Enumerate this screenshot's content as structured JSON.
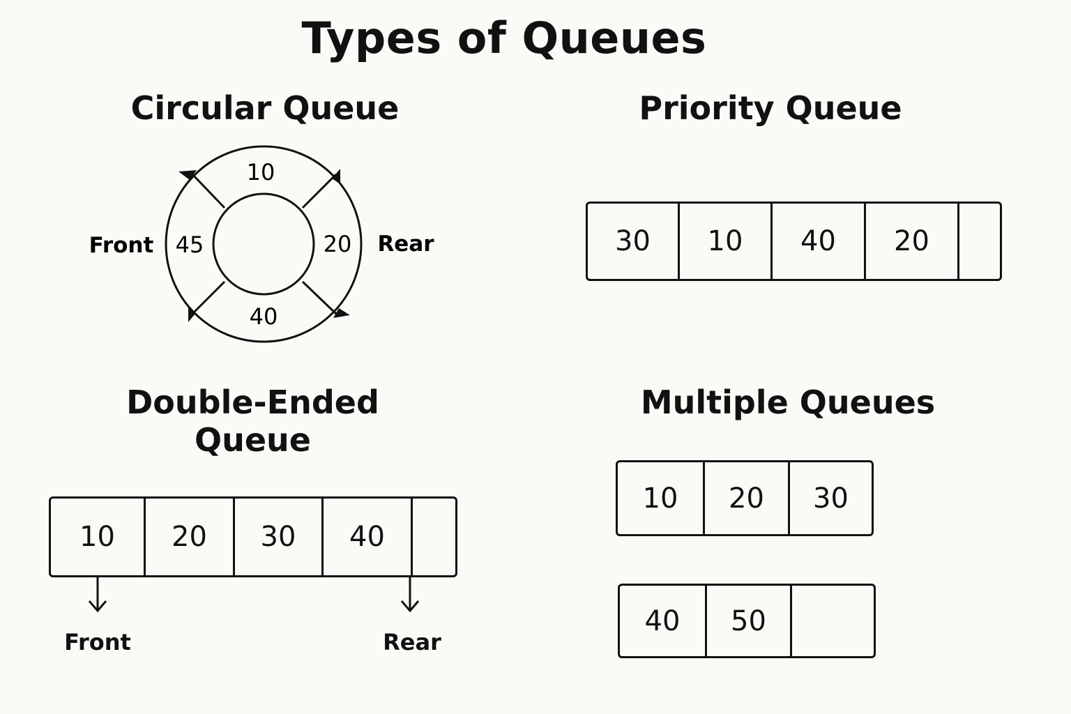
{
  "title": "Types of Queues",
  "circular": {
    "title": "Circular Queue",
    "values": {
      "top": "10",
      "right": "20",
      "bottom": "40",
      "left": "45"
    },
    "front_label": "Front",
    "rear_label": "Rear"
  },
  "priority": {
    "title": "Priority Queue",
    "cells": [
      "30",
      "10",
      "40",
      "20",
      ""
    ]
  },
  "deque": {
    "title": "Double-Ended Queue",
    "cells": [
      "10",
      "20",
      "30",
      "40",
      ""
    ],
    "front_label": "Front",
    "rear_label": "Rear"
  },
  "multiple": {
    "title": "Multiple Queues",
    "queue1": [
      "10",
      "20",
      "30"
    ],
    "queue2": [
      "40",
      "50",
      ""
    ]
  }
}
